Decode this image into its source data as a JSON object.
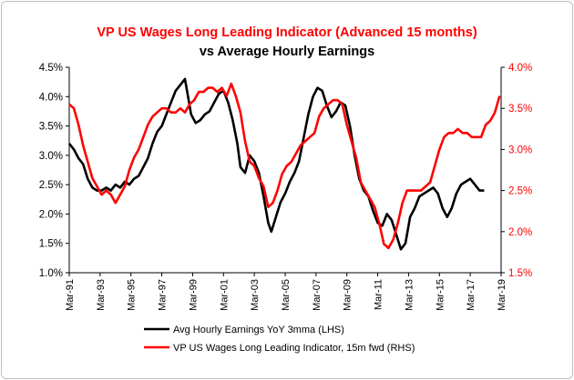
{
  "chart_data": {
    "type": "line",
    "title": "VP US Wages Long Leading Indicator (Advanced 15 months)",
    "subtitle": "vs Average Hourly Earnings",
    "x_ticks": [
      "Mar-91",
      "Mar-93",
      "Mar-95",
      "Mar-97",
      "Mar-99",
      "Mar-01",
      "Mar-03",
      "Mar-05",
      "Mar-07",
      "Mar-09",
      "Mar-11",
      "Mar-13",
      "Mar-15",
      "Mar-17",
      "Mar-19"
    ],
    "x_range": [
      1991.0,
      2019.0
    ],
    "y_left": {
      "range": [
        1.0,
        4.5
      ],
      "ticks": [
        "1.0%",
        "1.5%",
        "2.0%",
        "2.5%",
        "3.0%",
        "3.5%",
        "4.0%",
        "4.5%"
      ]
    },
    "y_right": {
      "range": [
        1.5,
        4.0
      ],
      "ticks": [
        "1.5%",
        "2.0%",
        "2.5%",
        "3.0%",
        "3.5%",
        "4.0%"
      ]
    },
    "legend_position": "bottom",
    "series": [
      {
        "name": "Avg Hourly Earnings YoY 3mma (LHS)",
        "axis": "left",
        "color": "#000000",
        "points": [
          [
            1991.0,
            3.2
          ],
          [
            1991.3,
            3.1
          ],
          [
            1991.6,
            2.95
          ],
          [
            1991.9,
            2.85
          ],
          [
            1992.2,
            2.6
          ],
          [
            1992.5,
            2.45
          ],
          [
            1992.8,
            2.4
          ],
          [
            1993.1,
            2.4
          ],
          [
            1993.4,
            2.45
          ],
          [
            1993.7,
            2.4
          ],
          [
            1994.0,
            2.5
          ],
          [
            1994.3,
            2.45
          ],
          [
            1994.6,
            2.55
          ],
          [
            1994.9,
            2.5
          ],
          [
            1995.2,
            2.6
          ],
          [
            1995.5,
            2.65
          ],
          [
            1995.8,
            2.8
          ],
          [
            1996.1,
            2.95
          ],
          [
            1996.4,
            3.2
          ],
          [
            1996.7,
            3.4
          ],
          [
            1997.0,
            3.5
          ],
          [
            1997.3,
            3.7
          ],
          [
            1997.6,
            3.9
          ],
          [
            1997.9,
            4.1
          ],
          [
            1998.2,
            4.2
          ],
          [
            1998.5,
            4.3
          ],
          [
            1998.7,
            4.0
          ],
          [
            1998.9,
            3.7
          ],
          [
            1999.2,
            3.55
          ],
          [
            1999.5,
            3.6
          ],
          [
            1999.8,
            3.7
          ],
          [
            2000.1,
            3.75
          ],
          [
            2000.4,
            3.9
          ],
          [
            2000.7,
            4.05
          ],
          [
            2001.0,
            4.1
          ],
          [
            2001.3,
            3.9
          ],
          [
            2001.6,
            3.6
          ],
          [
            2001.9,
            3.2
          ],
          [
            2002.1,
            2.8
          ],
          [
            2002.4,
            2.7
          ],
          [
            2002.7,
            3.0
          ],
          [
            2003.0,
            2.9
          ],
          [
            2003.3,
            2.7
          ],
          [
            2003.6,
            2.3
          ],
          [
            2003.9,
            1.85
          ],
          [
            2004.1,
            1.7
          ],
          [
            2004.4,
            1.95
          ],
          [
            2004.7,
            2.2
          ],
          [
            2005.0,
            2.35
          ],
          [
            2005.3,
            2.55
          ],
          [
            2005.6,
            2.7
          ],
          [
            2005.9,
            2.9
          ],
          [
            2006.2,
            3.3
          ],
          [
            2006.5,
            3.7
          ],
          [
            2006.8,
            4.0
          ],
          [
            2007.1,
            4.15
          ],
          [
            2007.4,
            4.1
          ],
          [
            2007.7,
            3.85
          ],
          [
            2008.0,
            3.65
          ],
          [
            2008.3,
            3.75
          ],
          [
            2008.6,
            3.9
          ],
          [
            2008.9,
            3.85
          ],
          [
            2009.2,
            3.5
          ],
          [
            2009.5,
            3.0
          ],
          [
            2009.8,
            2.6
          ],
          [
            2010.1,
            2.4
          ],
          [
            2010.4,
            2.3
          ],
          [
            2010.7,
            2.05
          ],
          [
            2011.0,
            1.85
          ],
          [
            2011.3,
            1.8
          ],
          [
            2011.6,
            2.0
          ],
          [
            2011.9,
            1.9
          ],
          [
            2012.2,
            1.65
          ],
          [
            2012.5,
            1.4
          ],
          [
            2012.8,
            1.5
          ],
          [
            2013.1,
            1.95
          ],
          [
            2013.4,
            2.1
          ],
          [
            2013.7,
            2.3
          ],
          [
            2014.0,
            2.35
          ],
          [
            2014.3,
            2.4
          ],
          [
            2014.6,
            2.45
          ],
          [
            2014.9,
            2.35
          ],
          [
            2015.2,
            2.1
          ],
          [
            2015.5,
            1.95
          ],
          [
            2015.8,
            2.1
          ],
          [
            2016.1,
            2.35
          ],
          [
            2016.4,
            2.5
          ],
          [
            2016.7,
            2.55
          ],
          [
            2017.0,
            2.6
          ],
          [
            2017.3,
            2.5
          ],
          [
            2017.6,
            2.4
          ],
          [
            2017.9,
            2.4
          ]
        ]
      },
      {
        "name": "VP US Wages Long Leading Indicator, 15m fwd (RHS)",
        "axis": "right",
        "color": "#ff0000",
        "points": [
          [
            1991.0,
            3.55
          ],
          [
            1991.3,
            3.5
          ],
          [
            1991.6,
            3.3
          ],
          [
            1991.9,
            3.05
          ],
          [
            1992.2,
            2.85
          ],
          [
            1992.5,
            2.65
          ],
          [
            1992.8,
            2.55
          ],
          [
            1993.1,
            2.45
          ],
          [
            1993.4,
            2.5
          ],
          [
            1993.7,
            2.45
          ],
          [
            1994.0,
            2.35
          ],
          [
            1994.3,
            2.45
          ],
          [
            1994.6,
            2.55
          ],
          [
            1994.9,
            2.75
          ],
          [
            1995.2,
            2.9
          ],
          [
            1995.5,
            3.0
          ],
          [
            1995.8,
            3.15
          ],
          [
            1996.1,
            3.3
          ],
          [
            1996.4,
            3.4
          ],
          [
            1996.7,
            3.45
          ],
          [
            1997.0,
            3.5
          ],
          [
            1997.3,
            3.5
          ],
          [
            1997.6,
            3.45
          ],
          [
            1997.9,
            3.45
          ],
          [
            1998.2,
            3.5
          ],
          [
            1998.5,
            3.45
          ],
          [
            1998.8,
            3.55
          ],
          [
            1999.1,
            3.6
          ],
          [
            1999.4,
            3.7
          ],
          [
            1999.7,
            3.7
          ],
          [
            2000.0,
            3.75
          ],
          [
            2000.3,
            3.75
          ],
          [
            2000.6,
            3.7
          ],
          [
            2000.9,
            3.75
          ],
          [
            2001.2,
            3.65
          ],
          [
            2001.5,
            3.8
          ],
          [
            2001.8,
            3.65
          ],
          [
            2002.1,
            3.45
          ],
          [
            2002.4,
            3.1
          ],
          [
            2002.7,
            2.85
          ],
          [
            2003.0,
            2.8
          ],
          [
            2003.3,
            2.65
          ],
          [
            2003.6,
            2.55
          ],
          [
            2003.9,
            2.3
          ],
          [
            2004.2,
            2.35
          ],
          [
            2004.5,
            2.5
          ],
          [
            2004.8,
            2.7
          ],
          [
            2005.1,
            2.8
          ],
          [
            2005.4,
            2.85
          ],
          [
            2005.7,
            2.95
          ],
          [
            2006.0,
            3.05
          ],
          [
            2006.3,
            3.1
          ],
          [
            2006.6,
            3.15
          ],
          [
            2006.9,
            3.2
          ],
          [
            2007.2,
            3.4
          ],
          [
            2007.5,
            3.5
          ],
          [
            2007.8,
            3.55
          ],
          [
            2008.1,
            3.6
          ],
          [
            2008.4,
            3.6
          ],
          [
            2008.7,
            3.55
          ],
          [
            2009.0,
            3.3
          ],
          [
            2009.3,
            3.1
          ],
          [
            2009.6,
            2.9
          ],
          [
            2009.9,
            2.6
          ],
          [
            2010.2,
            2.5
          ],
          [
            2010.5,
            2.4
          ],
          [
            2010.8,
            2.3
          ],
          [
            2011.1,
            2.1
          ],
          [
            2011.4,
            1.85
          ],
          [
            2011.7,
            1.8
          ],
          [
            2012.0,
            1.9
          ],
          [
            2012.3,
            2.1
          ],
          [
            2012.6,
            2.35
          ],
          [
            2012.9,
            2.5
          ],
          [
            2013.2,
            2.5
          ],
          [
            2013.5,
            2.5
          ],
          [
            2013.8,
            2.5
          ],
          [
            2014.1,
            2.55
          ],
          [
            2014.4,
            2.6
          ],
          [
            2014.7,
            2.8
          ],
          [
            2015.0,
            3.0
          ],
          [
            2015.3,
            3.15
          ],
          [
            2015.6,
            3.2
          ],
          [
            2015.9,
            3.2
          ],
          [
            2016.2,
            3.25
          ],
          [
            2016.5,
            3.2
          ],
          [
            2016.8,
            3.2
          ],
          [
            2017.1,
            3.15
          ],
          [
            2017.4,
            3.15
          ],
          [
            2017.7,
            3.15
          ],
          [
            2018.0,
            3.3
          ],
          [
            2018.3,
            3.35
          ],
          [
            2018.6,
            3.45
          ],
          [
            2018.9,
            3.65
          ]
        ]
      }
    ]
  }
}
